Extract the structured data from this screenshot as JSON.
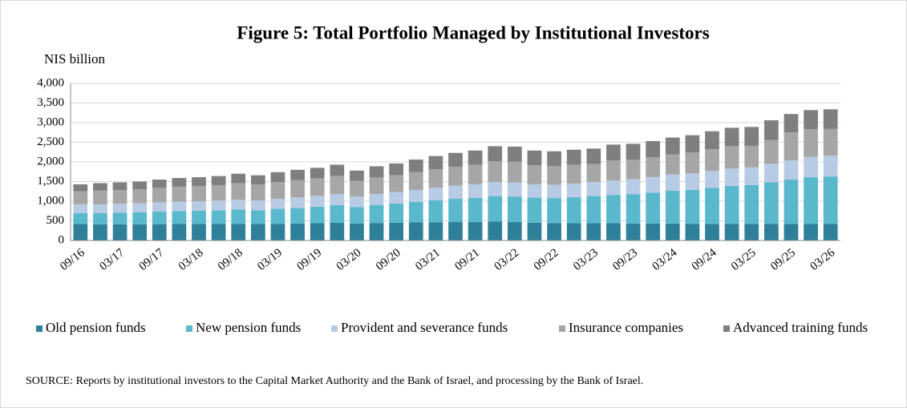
{
  "chart_data": {
    "type": "bar",
    "stacked": true,
    "title": "Figure 5:  Total Portfolio Managed by Institutional Investors",
    "ylabel": "NIS billion",
    "source": "SOURCE: Reports by institutional investors to the Capital Market Authority and the Bank of Israel, and processing by the Bank of Israel.",
    "categories": [
      "09/16",
      null,
      "03/17",
      null,
      "09/17",
      null,
      "03/18",
      null,
      "09/18",
      null,
      "03/19",
      null,
      "09/19",
      null,
      "03/20",
      null,
      "09/20",
      null,
      "03/21",
      null,
      "09/21",
      null,
      "03/22",
      null,
      "09/22",
      null,
      "03/23",
      null,
      "09/23",
      null,
      "03/24",
      null,
      "09/24",
      null,
      "03/25",
      null,
      "09/25",
      null,
      "03/26"
    ],
    "series": [
      {
        "name": "Old pension funds",
        "color": "#2e7f99",
        "values": [
          420,
          410,
          410,
          410,
          415,
          420,
          420,
          420,
          425,
          420,
          425,
          430,
          440,
          450,
          430,
          445,
          450,
          460,
          465,
          470,
          475,
          480,
          470,
          450,
          440,
          440,
          440,
          440,
          430,
          430,
          430,
          420,
          420,
          420,
          420,
          420,
          420,
          420,
          420
        ]
      },
      {
        "name": "New pension funds",
        "color": "#5ab8cc",
        "values": [
          280,
          290,
          300,
          310,
          320,
          330,
          340,
          350,
          360,
          350,
          380,
          400,
          420,
          450,
          420,
          460,
          490,
          520,
          560,
          590,
          610,
          650,
          650,
          640,
          640,
          660,
          690,
          720,
          750,
          790,
          840,
          870,
          920,
          970,
          990,
          1060,
          1130,
          1190,
          1210
        ]
      },
      {
        "name": "Provident and severance funds",
        "color": "#b8cbe4",
        "values": [
          220,
          220,
          225,
          230,
          235,
          240,
          240,
          245,
          250,
          245,
          255,
          265,
          275,
          285,
          265,
          280,
          290,
          305,
          320,
          335,
          345,
          360,
          355,
          340,
          340,
          350,
          360,
          370,
          380,
          395,
          410,
          420,
          430,
          440,
          450,
          470,
          490,
          520,
          530
        ]
      },
      {
        "name": "Insurance companies",
        "color": "#a6a6a6",
        "values": [
          330,
          350,
          350,
          350,
          370,
          380,
          385,
          395,
          425,
          410,
          430,
          445,
          445,
          460,
          400,
          420,
          430,
          455,
          465,
          480,
          495,
          525,
          530,
          485,
          470,
          475,
          460,
          510,
          495,
          500,
          510,
          530,
          555,
          570,
          550,
          610,
          710,
          700,
          680
        ]
      },
      {
        "name": "Advanced training funds",
        "color": "#7f7f7f",
        "values": [
          180,
          190,
          195,
          200,
          210,
          220,
          225,
          230,
          240,
          235,
          250,
          260,
          270,
          285,
          265,
          285,
          300,
          320,
          340,
          355,
          365,
          385,
          385,
          375,
          380,
          385,
          390,
          400,
          405,
          415,
          430,
          440,
          455,
          470,
          480,
          500,
          470,
          490,
          500
        ]
      }
    ],
    "ylim": [
      0,
      4000
    ],
    "yticks": [
      0,
      500,
      {
        "value": 1000,
        "label": "1,000"
      },
      {
        "value": 1500,
        "label": "1,500"
      },
      {
        "value": 2000,
        "label": "2,000"
      },
      {
        "value": 2500,
        "label": "2,500"
      },
      {
        "value": 3000,
        "label": "3,000"
      },
      {
        "value": 3500,
        "label": "3,500"
      },
      {
        "value": 4000,
        "label": "4,000"
      }
    ],
    "grid": true,
    "legend": "bottom"
  }
}
